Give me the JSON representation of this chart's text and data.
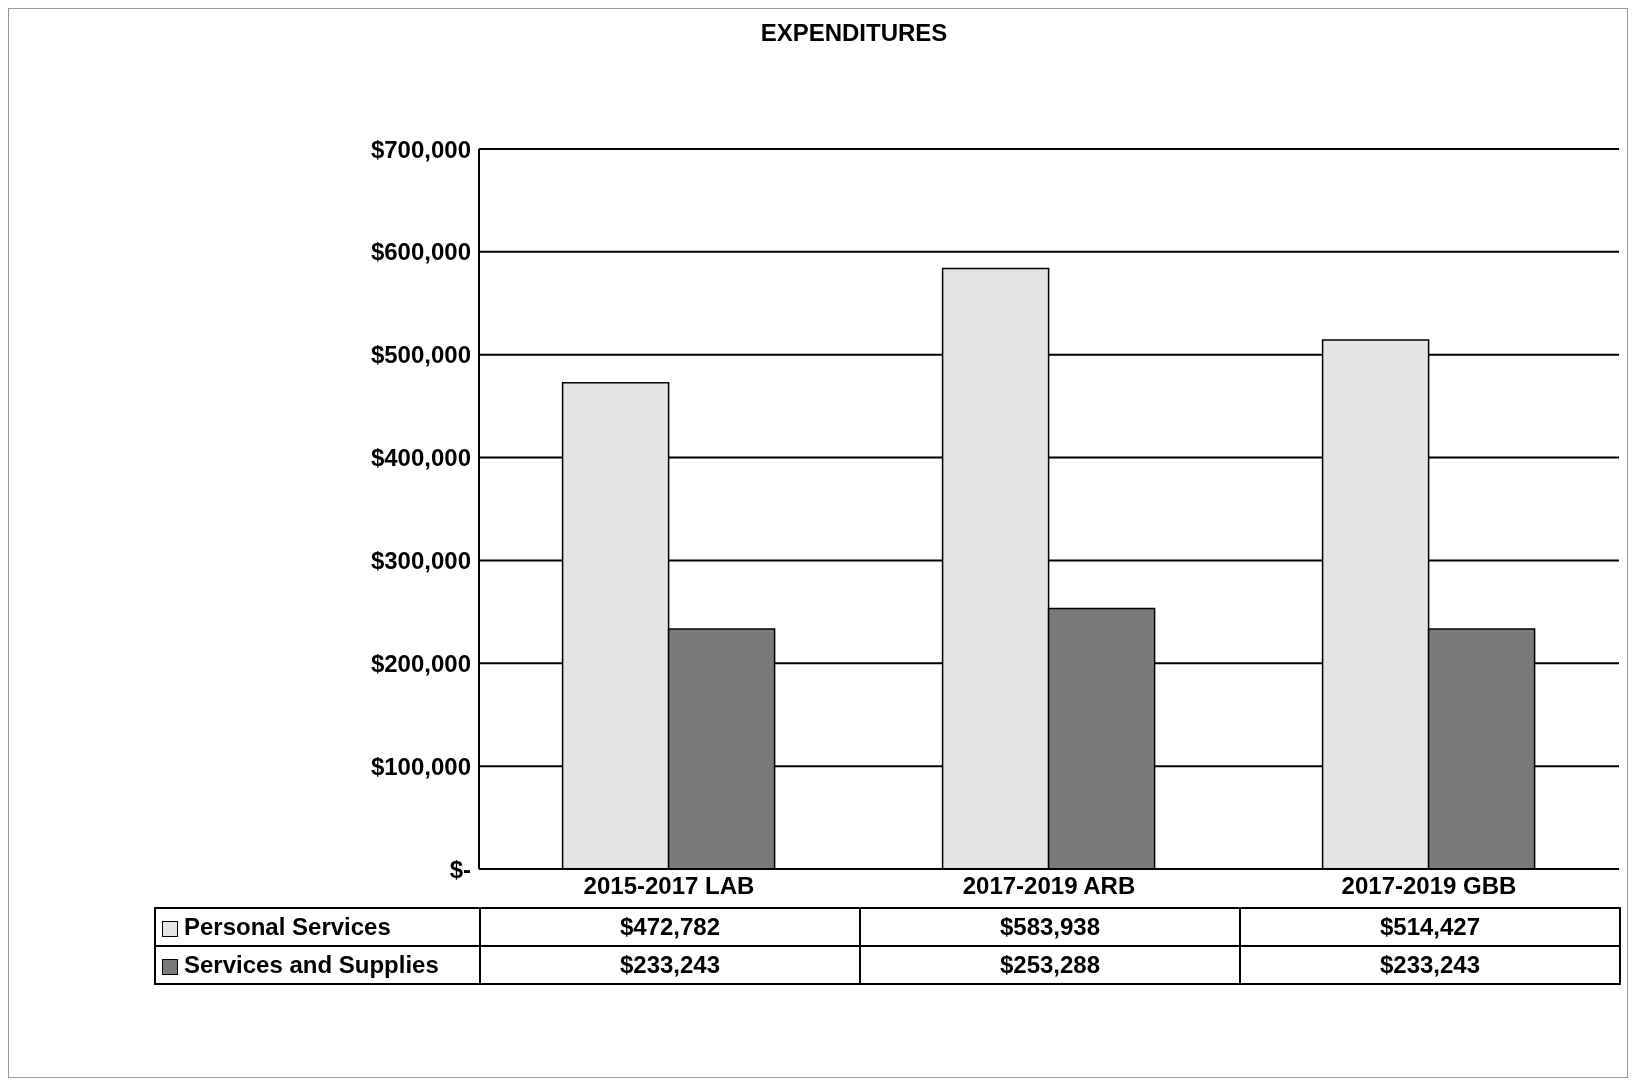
{
  "chart_data": {
    "type": "bar",
    "title": "EXPENDITURES",
    "categories": [
      "2015-2017 LAB",
      "2017-2019 ARB",
      "2017-2019 GBB"
    ],
    "series": [
      {
        "name": "Personal Services",
        "color": "#e4e4e4",
        "values": [
          472782,
          583938,
          514427
        ],
        "value_labels": [
          "$472,782",
          "$583,938",
          "$514,427"
        ]
      },
      {
        "name": "Services and Supplies",
        "color": "#7a7a7a",
        "values": [
          233243,
          253288,
          233243
        ],
        "value_labels": [
          "$233,243",
          "$253,288",
          "$233,243"
        ]
      }
    ],
    "ylim": [
      0,
      700000
    ],
    "yticks": [
      {
        "value": 0,
        "label": "$-"
      },
      {
        "value": 100000,
        "label": "$100,000"
      },
      {
        "value": 200000,
        "label": "$200,000"
      },
      {
        "value": 300000,
        "label": "$300,000"
      },
      {
        "value": 400000,
        "label": "$400,000"
      },
      {
        "value": 500000,
        "label": "$500,000"
      },
      {
        "value": 600000,
        "label": "$600,000"
      },
      {
        "value": 700000,
        "label": "$700,000"
      }
    ],
    "grid": "y",
    "legend": "bottom"
  }
}
